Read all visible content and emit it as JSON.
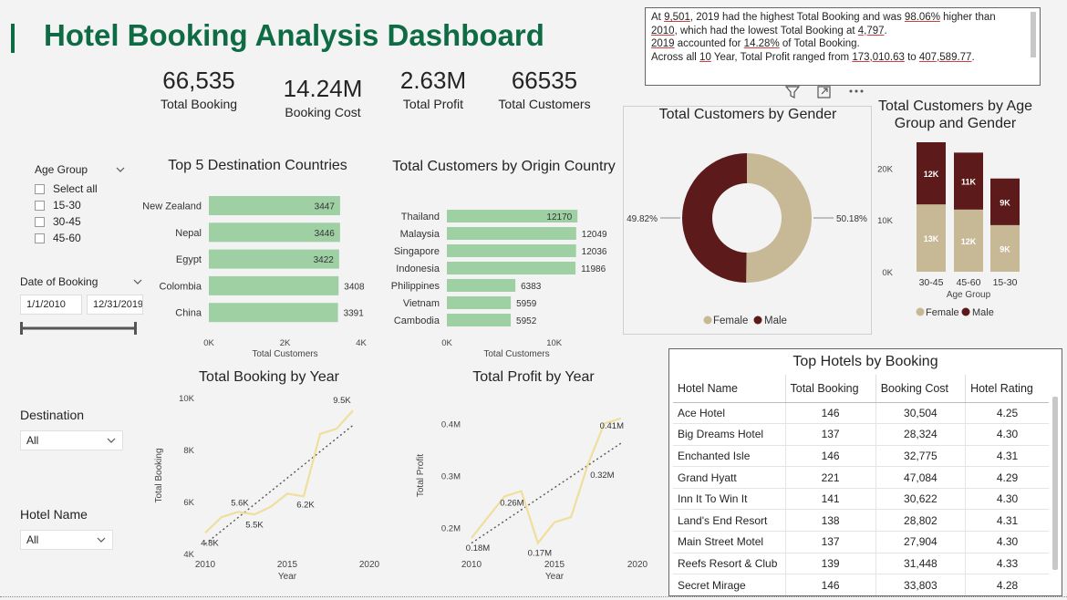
{
  "title": "Hotel Booking Analysis Dashboard",
  "kpis": [
    {
      "value": "66,535",
      "label": "Total Booking"
    },
    {
      "value": "14.24M",
      "label": "Booking Cost"
    },
    {
      "value": "2.63M",
      "label": "Total Profit"
    },
    {
      "value": "66535",
      "label": "Total Customers"
    }
  ],
  "narrative": {
    "line1_a": "At ",
    "line1_year": "9,501",
    "line1_b": ", 2019 had the highest Total Booking and was ",
    "line1_pct": "98.06%",
    "line1_c": " higher than",
    "line2_year": "2010",
    "line2_b": ", which had the lowest Total Booking at ",
    "line2_val": "4,797",
    "line2_c": ".",
    "line3_year": "2019",
    "line3_b": " accounted for ",
    "line3_pct": "14.28%",
    "line3_c": " of Total Booking.",
    "line4_a": "Across all ",
    "line4_n": "10",
    "line4_b": " Year, Total Profit ranged from ",
    "line4_min": "173,010.63",
    "line4_c": " to ",
    "line4_max": "407,589.77",
    "line4_d": "."
  },
  "slicers": {
    "age_group": {
      "title": "Age Group",
      "options": [
        "Select all",
        "15-30",
        "30-45",
        "45-60"
      ]
    },
    "date": {
      "title": "Date of Booking",
      "start": "1/1/2010",
      "end": "12/31/2019"
    },
    "destination": {
      "title": "Destination",
      "value": "All"
    },
    "hotel_name": {
      "title": "Hotel Name",
      "value": "All"
    }
  },
  "colors": {
    "brand": "#0e6b43",
    "bar_green": "#9fd0a4",
    "female": "#c7b995",
    "male": "#5c1a1b",
    "line": "#f0de9c"
  },
  "chart_data": [
    {
      "type": "bar",
      "title": "Top 5 Destination Countries",
      "categories": [
        "New Zealand",
        "Nepal",
        "Egypt",
        "Colombia",
        "China"
      ],
      "values": [
        3447,
        3446,
        3422,
        3408,
        3391
      ],
      "xlabel": "Total Customers",
      "xticks": [
        "0K",
        "2K",
        "4K"
      ],
      "xlim": [
        0,
        4000
      ]
    },
    {
      "type": "bar",
      "title": "Total Customers by Origin Country",
      "categories": [
        "Thailand",
        "Malaysia",
        "Singapore",
        "Indonesia",
        "Philippines",
        "Vietnam",
        "Cambodia"
      ],
      "values": [
        12170,
        12049,
        12036,
        11986,
        6383,
        5959,
        5952
      ],
      "xlabel": "Total Customers",
      "xticks": [
        "0K",
        "10K"
      ],
      "xlim": [
        0,
        13000
      ]
    },
    {
      "type": "pie",
      "title": "Total Customers by Gender",
      "categories": [
        "Female",
        "Male"
      ],
      "values": [
        50.18,
        49.82
      ],
      "labels": [
        "50.18%",
        "49.82%"
      ],
      "legend": "bottom"
    },
    {
      "type": "bar",
      "title": "Total Customers by Age Group and Gender",
      "categories": [
        "30-45",
        "45-60",
        "15-30"
      ],
      "series": [
        {
          "name": "Female",
          "values": [
            13000,
            12000,
            9000
          ],
          "labels": [
            "13K",
            "12K",
            "9K"
          ]
        },
        {
          "name": "Male",
          "values": [
            12000,
            11000,
            9000
          ],
          "labels": [
            "12K",
            "11K",
            "9K"
          ]
        }
      ],
      "xlabel": "Age Group",
      "yticks": [
        "0K",
        "10K",
        "20K"
      ],
      "ylim": [
        0,
        25000
      ],
      "legend": "bottom"
    },
    {
      "type": "line",
      "title": "Total Booking by Year",
      "x": [
        2010,
        2011,
        2012,
        2013,
        2014,
        2015,
        2016,
        2017,
        2018,
        2019
      ],
      "values": [
        4797,
        5400,
        5600,
        5500,
        5800,
        6300,
        6200,
        8600,
        8800,
        9501
      ],
      "data_labels": [
        {
          "x": 2010,
          "text": "4.8K"
        },
        {
          "x": 2012,
          "text": "5.6K"
        },
        {
          "x": 2013,
          "text": "5.5K"
        },
        {
          "x": 2016,
          "text": "6.2K"
        },
        {
          "x": 2019,
          "text": "9.5K"
        }
      ],
      "xlabel": "Year",
      "ylabel": "Total Booking",
      "xticks": [
        "2010",
        "2015",
        "2020"
      ],
      "yticks": [
        "4K",
        "6K",
        "8K",
        "10K"
      ],
      "xlim": [
        2010,
        2020
      ],
      "ylim": [
        4000,
        10000
      ],
      "trendline": true
    },
    {
      "type": "line",
      "title": "Total Profit by Year",
      "x": [
        2010,
        2011,
        2012,
        2013,
        2014,
        2015,
        2016,
        2017,
        2018,
        2019
      ],
      "values": [
        0.18,
        0.22,
        0.26,
        0.27,
        0.17,
        0.21,
        0.22,
        0.32,
        0.4,
        0.41
      ],
      "data_labels": [
        {
          "x": 2010,
          "text": "0.18M"
        },
        {
          "x": 2012,
          "text": "0.26M"
        },
        {
          "x": 2014,
          "text": "0.17M"
        },
        {
          "x": 2017,
          "text": "0.32M"
        },
        {
          "x": 2019,
          "text": "0.41M"
        }
      ],
      "xlabel": "Year",
      "ylabel": "Total Profit",
      "xticks": [
        "2010",
        "2015",
        "2020"
      ],
      "yticks": [
        "0.2M",
        "0.3M",
        "0.4M"
      ],
      "xlim": [
        2010,
        2020
      ],
      "ylim": [
        0.15,
        0.45
      ],
      "trendline": true
    },
    {
      "type": "table",
      "title": "Top Hotels by Booking",
      "columns": [
        "Hotel Name",
        "Total Booking",
        "Booking Cost",
        "Hotel Rating"
      ],
      "rows": [
        [
          "Ace Hotel",
          "146",
          "30,504",
          "4.25"
        ],
        [
          "Big Dreams Hotel",
          "137",
          "28,324",
          "4.30"
        ],
        [
          "Enchanted Isle",
          "146",
          "32,775",
          "4.31"
        ],
        [
          "Grand Hyatt",
          "221",
          "47,084",
          "4.29"
        ],
        [
          "Inn It To Win It",
          "141",
          "30,622",
          "4.30"
        ],
        [
          "Land's End Resort",
          "138",
          "28,802",
          "4.31"
        ],
        [
          "Main Street Motel",
          "137",
          "27,904",
          "4.30"
        ],
        [
          "Reefs Resort & Club",
          "139",
          "31,448",
          "4.33"
        ],
        [
          "Secret Mirage",
          "146",
          "33,803",
          "4.28"
        ]
      ]
    }
  ]
}
